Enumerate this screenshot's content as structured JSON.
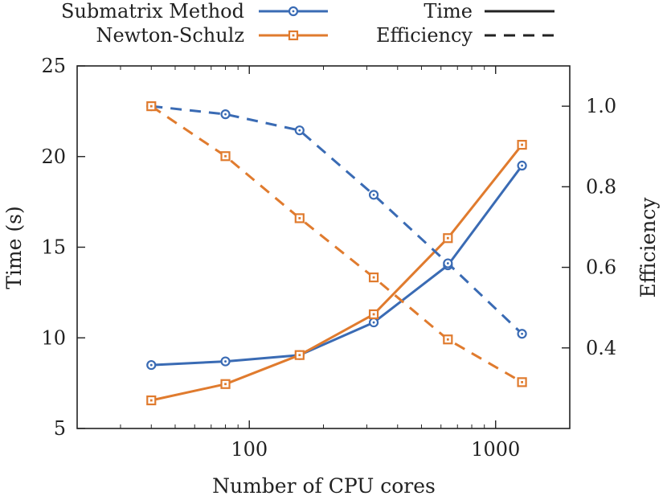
{
  "chart_data": {
    "type": "line",
    "xlabel": "Number of CPU cores",
    "ylabel": "Time (s)",
    "y2label": "Efficiency",
    "x_scale": "log",
    "xlim": [
      20,
      2000
    ],
    "ylim": [
      5,
      25
    ],
    "y2lim": [
      0.2,
      1.1
    ],
    "x_ticks": [
      100,
      1000
    ],
    "x_tick_labels": [
      "100",
      "1000"
    ],
    "y_ticks": [
      5,
      10,
      15,
      20,
      25
    ],
    "y_tick_labels": [
      "5",
      "10",
      "15",
      "20",
      "25"
    ],
    "y2_ticks": [
      0.4,
      0.6,
      0.8,
      1.0
    ],
    "y2_tick_labels": [
      "0.4",
      "0.6",
      "0.8",
      "1.0"
    ],
    "legend_placement": "top, outside plot",
    "legend": {
      "methods": [
        {
          "name": "Submatrix Method",
          "color": "#3a6bb4",
          "marker": "circle"
        },
        {
          "name": "Newton-Schulz",
          "color": "#e07b2e",
          "marker": "square"
        }
      ],
      "styles": [
        {
          "name": "Time",
          "dash": "solid"
        },
        {
          "name": "Efficiency",
          "dash": "dashed"
        }
      ]
    },
    "x": [
      40,
      80,
      160,
      320,
      640,
      1280
    ],
    "series": [
      {
        "name": "Submatrix Method",
        "metric": "Time",
        "axis": "y",
        "color": "#3a6bb4",
        "marker": "circle",
        "dash": "solid",
        "values": [
          8.5,
          8.7,
          9.05,
          10.85,
          14.0,
          19.5
        ]
      },
      {
        "name": "Newton-Schulz",
        "metric": "Time",
        "axis": "y",
        "color": "#e07b2e",
        "marker": "square",
        "dash": "solid",
        "values": [
          6.55,
          7.45,
          9.05,
          11.3,
          15.5,
          20.65
        ]
      },
      {
        "name": "Submatrix Method",
        "metric": "Efficiency",
        "axis": "y2",
        "color": "#3a6bb4",
        "marker": "circle",
        "dash": "dashed",
        "values": [
          1.0,
          0.98,
          0.94,
          0.78,
          0.61,
          0.435
        ]
      },
      {
        "name": "Newton-Schulz",
        "metric": "Efficiency",
        "axis": "y2",
        "color": "#e07b2e",
        "marker": "square",
        "dash": "dashed",
        "values": [
          1.0,
          0.876,
          0.722,
          0.575,
          0.421,
          0.315
        ]
      }
    ]
  }
}
